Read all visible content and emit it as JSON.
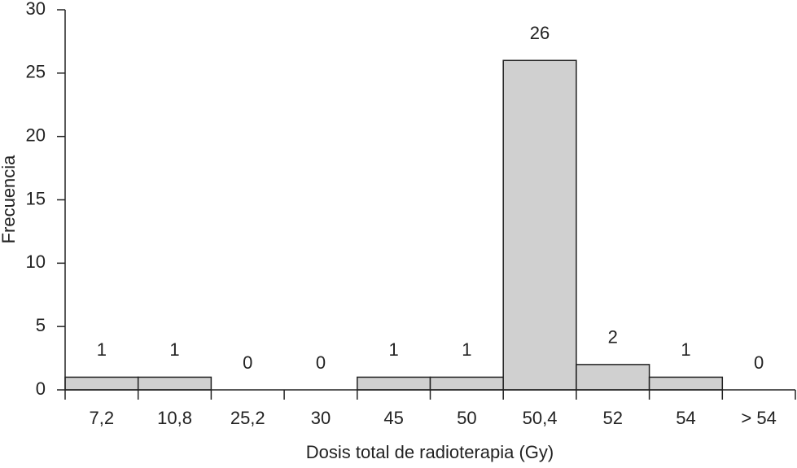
{
  "chart_data": {
    "type": "bar",
    "x_label": "Dosis total de radioterapia (Gy)",
    "y_label": "Frecuencia",
    "categories": [
      "7,2",
      "10,8",
      "25,2",
      "30",
      "45",
      "50",
      "50,4",
      "52",
      "54",
      "> 54"
    ],
    "values": [
      1,
      1,
      0,
      0,
      1,
      1,
      26,
      2,
      1,
      0
    ],
    "color": "#d0d0d0",
    "ylim": [
      0,
      30
    ],
    "yticks": [
      0,
      5,
      10,
      15,
      20,
      25,
      30
    ],
    "data_labels": true,
    "grid": false
  }
}
